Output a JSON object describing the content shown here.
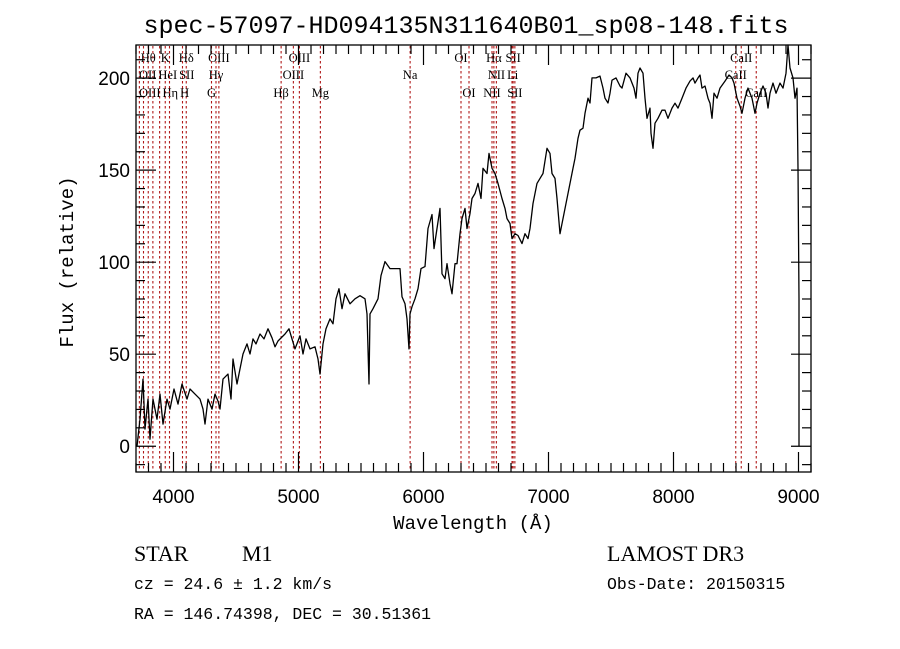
{
  "chart_data": {
    "type": "line",
    "title": "spec-57097-HD094135N311640B01_sp08-148.fits",
    "xlabel": "Wavelength (Å)",
    "ylabel": "Flux (relative)",
    "xlim": [
      3700,
      9100
    ],
    "ylim": [
      -14,
      218
    ],
    "x_major_ticks": [
      4000,
      5000,
      6000,
      7000,
      8000,
      9000
    ],
    "x_minor_step": 100,
    "y_major_ticks": [
      0,
      50,
      100,
      150,
      200
    ],
    "y_minor_step": 10,
    "x_tick_labels": [
      "4000",
      "5000",
      "6000",
      "7000",
      "8000",
      "9000"
    ],
    "y_tick_labels": [
      "0",
      "50",
      "100",
      "150",
      "200"
    ],
    "grid": false,
    "series": [
      {
        "name": "spectrum",
        "color": "#000000",
        "x": [
          3708,
          3732,
          3756,
          3772,
          3796,
          3812,
          3836,
          3868,
          3892,
          3916,
          3948,
          3972,
          4004,
          4036,
          4068,
          4108,
          4132,
          4172,
          4212,
          4236,
          4252,
          4276,
          4308,
          4332,
          4356,
          4372,
          4396,
          4436,
          4460,
          4476,
          4508,
          4532,
          4556,
          4588,
          4612,
          4636,
          4660,
          4692,
          4724,
          4756,
          4788,
          4812,
          4836,
          4892,
          4924,
          4948,
          4972,
          5012,
          5036,
          5060,
          5092,
          5132,
          5156,
          5172,
          5196,
          5220,
          5252,
          5276,
          5300,
          5324,
          5348,
          5372,
          5412,
          5452,
          5492,
          5532,
          5548,
          5564,
          5572,
          5596,
          5636,
          5660,
          5692,
          5732,
          5780,
          5812,
          5828,
          5852,
          5868,
          5884,
          5892,
          5908,
          5932,
          5956,
          5980,
          6012,
          6036,
          6068,
          6084,
          6108,
          6132,
          6148,
          6172,
          6188,
          6212,
          6228,
          6252,
          6268,
          6292,
          6308,
          6332,
          6348,
          6372,
          6388,
          6412,
          6436,
          6460,
          6476,
          6508,
          6524,
          6548,
          6572,
          6596,
          6628,
          6652,
          6668,
          6692,
          6708,
          6732,
          6756,
          6788,
          6812,
          6836,
          6852,
          6876,
          6908,
          6932,
          6956,
          6988,
          7012,
          7028,
          7052,
          7068,
          7092,
          7116,
          7140,
          7172,
          7196,
          7212,
          7236,
          7252,
          7276,
          7292,
          7316,
          7332,
          7348,
          7380,
          7412,
          7436,
          7452,
          7476,
          7492,
          7508,
          7540,
          7572,
          7588,
          7620,
          7652,
          7684,
          7700,
          7716,
          7732,
          7756,
          7772,
          7788,
          7812,
          7820,
          7836,
          7852,
          7876,
          7908,
          7932,
          7956,
          7988,
          8012,
          8036,
          8068,
          8100,
          8132,
          8156,
          8172,
          8196,
          8212,
          8228,
          8252,
          8276,
          8292,
          8308,
          8324,
          8348,
          8372,
          8412,
          8444,
          8468,
          8484,
          8508,
          8532,
          8548,
          8572,
          8596,
          8628,
          8652,
          8668,
          8692,
          8716,
          8740,
          8756,
          8772,
          8796,
          8820,
          8852,
          8876,
          8900,
          8916,
          8932,
          8956,
          8972,
          8988,
          8996,
          9004,
          9004
        ],
        "y": [
          0,
          14.7,
          36.5,
          9.3,
          25.6,
          3.8,
          25.6,
          14.7,
          28.3,
          12.0,
          25.6,
          20.2,
          31.1,
          22.9,
          33.8,
          25.6,
          31.1,
          28.3,
          25.6,
          20.2,
          12.0,
          25.6,
          20.2,
          28.3,
          24.5,
          20.2,
          36.5,
          39.2,
          25.6,
          47.4,
          33.8,
          42.0,
          50.1,
          55.6,
          50.1,
          58.3,
          55.6,
          61.0,
          58.3,
          63.8,
          58.9,
          54.0,
          57.2,
          61.0,
          63.8,
          58.3,
          52.9,
          60.0,
          50.1,
          58.3,
          52.9,
          54.0,
          47.4,
          39.2,
          55.6,
          63.8,
          69.2,
          66.5,
          80.1,
          85.6,
          74.7,
          82.8,
          77.4,
          80.1,
          81.8,
          80.1,
          71.9,
          33.8,
          71.9,
          74.7,
          80.1,
          92.7,
          100.3,
          96.5,
          96.5,
          96.5,
          81.2,
          77.4,
          69.2,
          52.9,
          71.9,
          75.8,
          80.1,
          85.6,
          96.5,
          97.6,
          118.3,
          125.9,
          107.4,
          118.3,
          129.2,
          93.7,
          91.0,
          99.2,
          88.3,
          82.8,
          99.2,
          99.2,
          115.5,
          123.7,
          129.2,
          118.3,
          126.4,
          134.6,
          137.3,
          142.8,
          134.6,
          151.0,
          148.2,
          159.1,
          151.0,
          148.2,
          142.8,
          134.6,
          129.2,
          123.7,
          121.0,
          112.8,
          115.5,
          114.5,
          110.1,
          115.5,
          112.8,
          118.3,
          131.9,
          142.8,
          145.5,
          148.2,
          161.9,
          159.1,
          148.2,
          145.5,
          134.6,
          115.5,
          123.7,
          131.9,
          142.8,
          151.0,
          156.4,
          167.3,
          171.7,
          172.8,
          180.9,
          189.1,
          186.5,
          200.1,
          200.1,
          201.1,
          194.6,
          189.1,
          186.5,
          191.8,
          198.9,
          200.1,
          195.7,
          194.6,
          202.7,
          200.1,
          194.6,
          189.1,
          202.7,
          205.5,
          202.7,
          189.1,
          178.2,
          183.7,
          170.0,
          161.9,
          175.5,
          178.2,
          182.6,
          182.6,
          178.2,
          183.7,
          186.4,
          183.7,
          189.1,
          194.6,
          198.4,
          200.1,
          197.3,
          200.1,
          201.7,
          194.6,
          195.7,
          189.1,
          186.4,
          178.2,
          191.8,
          189.1,
          194.6,
          198.4,
          201.7,
          200.1,
          197.3,
          189.1,
          184.8,
          180.9,
          189.1,
          194.6,
          189.1,
          180.9,
          186.4,
          191.8,
          195.7,
          191.8,
          183.7,
          191.8,
          197.3,
          191.8,
          197.3,
          194.6,
          202.7,
          218,
          205.5,
          200.1,
          189.1,
          194.6,
          151.0,
          80.1,
          0
        ]
      }
    ],
    "line_color": "#b01818",
    "spectral_lines": [
      {
        "label": "Hθ",
        "wavelength": 3798,
        "row": 1
      },
      {
        "label": "K",
        "wavelength": 3934,
        "row": 1
      },
      {
        "label": "Hδ",
        "wavelength": 4102,
        "row": 1
      },
      {
        "label": "OIII",
        "wavelength": 4363,
        "row": 1
      },
      {
        "label": "OIII",
        "wavelength": 5007,
        "row": 1
      },
      {
        "label": "OI",
        "wavelength": 6300,
        "row": 1
      },
      {
        "label": "Hα",
        "wavelength": 6563,
        "row": 1
      },
      {
        "label": "SII",
        "wavelength": 6717,
        "row": 1
      },
      {
        "label": "CaII",
        "wavelength": 8542,
        "row": 1
      },
      {
        "label": "OII",
        "wavelength": 3727,
        "row": 2
      },
      {
        "label": "HeI",
        "wavelength": 3889,
        "row": 2
      },
      {
        "label": "SII",
        "wavelength": 4072,
        "row": 2
      },
      {
        "label": "Hγ",
        "wavelength": 4340,
        "row": 2
      },
      {
        "label": "OIII",
        "wavelength": 4959,
        "row": 2
      },
      {
        "label": "Na",
        "wavelength": 5893,
        "row": 2
      },
      {
        "label": "NII",
        "wavelength": 6583,
        "row": 2
      },
      {
        "label": "Li",
        "wavelength": 6708,
        "row": 2
      },
      {
        "label": "CaII",
        "wavelength": 8498,
        "row": 2
      },
      {
        "label": "OIII",
        "wavelength": 3760,
        "row": 3
      },
      {
        "label": "Hη",
        "wavelength": 3835,
        "row": 3
      },
      {
        "label": "H",
        "wavelength": 3968,
        "row": 3
      },
      {
        "label": "G",
        "wavelength": 4304,
        "row": 3
      },
      {
        "label": "Hβ",
        "wavelength": 4861,
        "row": 3
      },
      {
        "label": "Mg",
        "wavelength": 5175,
        "row": 3
      },
      {
        "label": "OI",
        "wavelength": 6364,
        "row": 3
      },
      {
        "label": "NII",
        "wavelength": 6548,
        "row": 3
      },
      {
        "label": "SII",
        "wavelength": 6731,
        "row": 3
      },
      {
        "label": "CaII",
        "wavelength": 8662,
        "row": 3
      }
    ]
  },
  "info": {
    "object_type": "STAR",
    "subclass": "M1",
    "survey": "LAMOST DR3",
    "cz": "cz = 24.6 ± 1.2 km/s",
    "obs_date": "Obs-Date: 20150315",
    "coords": "RA = 146.74398, DEC =  30.51361"
  }
}
